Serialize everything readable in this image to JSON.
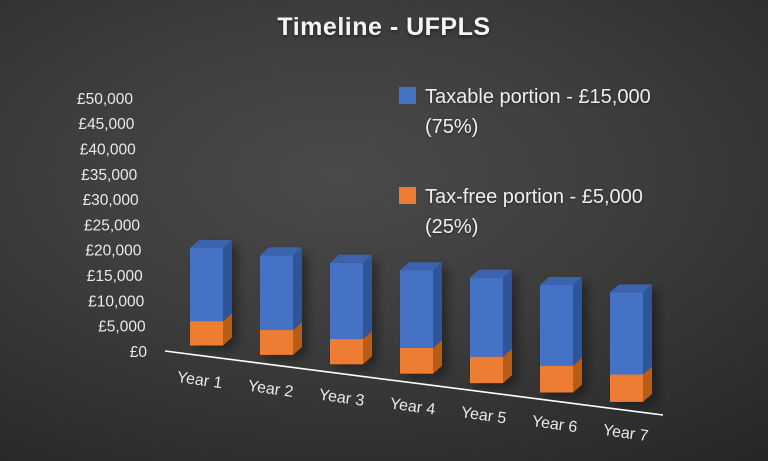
{
  "slide": {
    "title": "Timeline - UFPLS"
  },
  "legend": {
    "items": [
      {
        "id": "taxable",
        "swatch_color": "#4472C4",
        "lines": [
          "Taxable portion - £15,000",
          "(75%)"
        ]
      },
      {
        "id": "taxfree",
        "swatch_color": "#ED7D31",
        "lines": [
          "Tax-free portion - £5,000",
          "(25%)"
        ]
      }
    ]
  },
  "chart_data": {
    "type": "bar",
    "subtype": "3d-stacked-column",
    "title": "Timeline - UFPLS",
    "categories": [
      "Year 1",
      "Year 2",
      "Year 3",
      "Year 4",
      "Year 5",
      "Year 6",
      "Year 7"
    ],
    "series": [
      {
        "name": "Tax-free portion - £5,000 (25%)",
        "values": [
          5000,
          5000,
          5000,
          5000,
          5000,
          5000,
          5000
        ],
        "color": "#ED7D31",
        "color_side": "#B85C15",
        "color_top": "#D96F24"
      },
      {
        "name": "Taxable portion - £15,000 (75%)",
        "values": [
          15000,
          15000,
          15000,
          15000,
          15000,
          15000,
          15000
        ],
        "color": "#4472C4",
        "color_side": "#2F5597",
        "color_top": "#3C64AE"
      }
    ],
    "stack_total_per_year": 20000,
    "xlabel": "",
    "ylabel": "",
    "ylim": [
      0,
      50000
    ],
    "y_tick_step": 5000,
    "y_ticks": [
      "£0",
      "£5,000",
      "£10,000",
      "£15,000",
      "£20,000",
      "£25,000",
      "£30,000",
      "£35,000",
      "£40,000",
      "£45,000",
      "£50,000"
    ],
    "grid": false,
    "legend_position": "upper-right"
  },
  "colors": {
    "background_center": "#4a4a4a",
    "background_edge": "#232323",
    "title_text": "#f4f4f4",
    "legend_text": "#efefef",
    "axis_text": "#e9e9e9",
    "axis_line": "#ffffff",
    "taxable_front": "#4472C4",
    "taxable_side": "#2F5597",
    "taxable_top": "#3C64AE",
    "taxfree_front": "#ED7D31",
    "taxfree_side": "#B85C15"
  }
}
